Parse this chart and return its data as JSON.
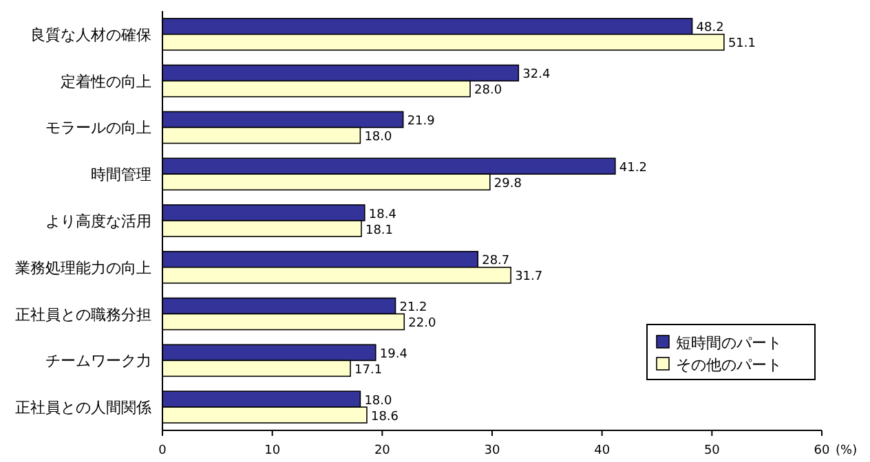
{
  "chart_data": {
    "type": "bar",
    "orientation": "horizontal",
    "categories": [
      "良質な人材の確保",
      "定着性の向上",
      "モラールの向上",
      "時間管理",
      "より高度な活用",
      "業務処理能力の向上",
      "正社員との職務分担",
      "チームワーク力",
      "正社員との人間関係"
    ],
    "series": [
      {
        "name": "短時間のパート",
        "color": "#333399",
        "values": [
          48.2,
          32.4,
          21.9,
          41.2,
          18.4,
          28.7,
          21.2,
          19.4,
          18.0
        ],
        "value_labels": [
          "48.2",
          "32.4",
          "21.9",
          "41.2",
          "18.4",
          "28.7",
          "21.2",
          "19.4",
          "18.0"
        ]
      },
      {
        "name": "その他のパート",
        "color": "#ffffcc",
        "values": [
          51.1,
          28.0,
          18.0,
          29.8,
          18.1,
          31.7,
          22.0,
          17.1,
          18.6
        ],
        "value_labels": [
          "51.1",
          "28.0",
          "18.0",
          "29.8",
          "18.1",
          "31.7",
          "22.0",
          "17.1",
          "18.6"
        ]
      }
    ],
    "xlabel": "(%)",
    "xlim": [
      0,
      60
    ],
    "xticks": [
      0,
      10,
      20,
      30,
      40,
      50,
      60
    ],
    "legend": "bottom right",
    "grid": false
  }
}
